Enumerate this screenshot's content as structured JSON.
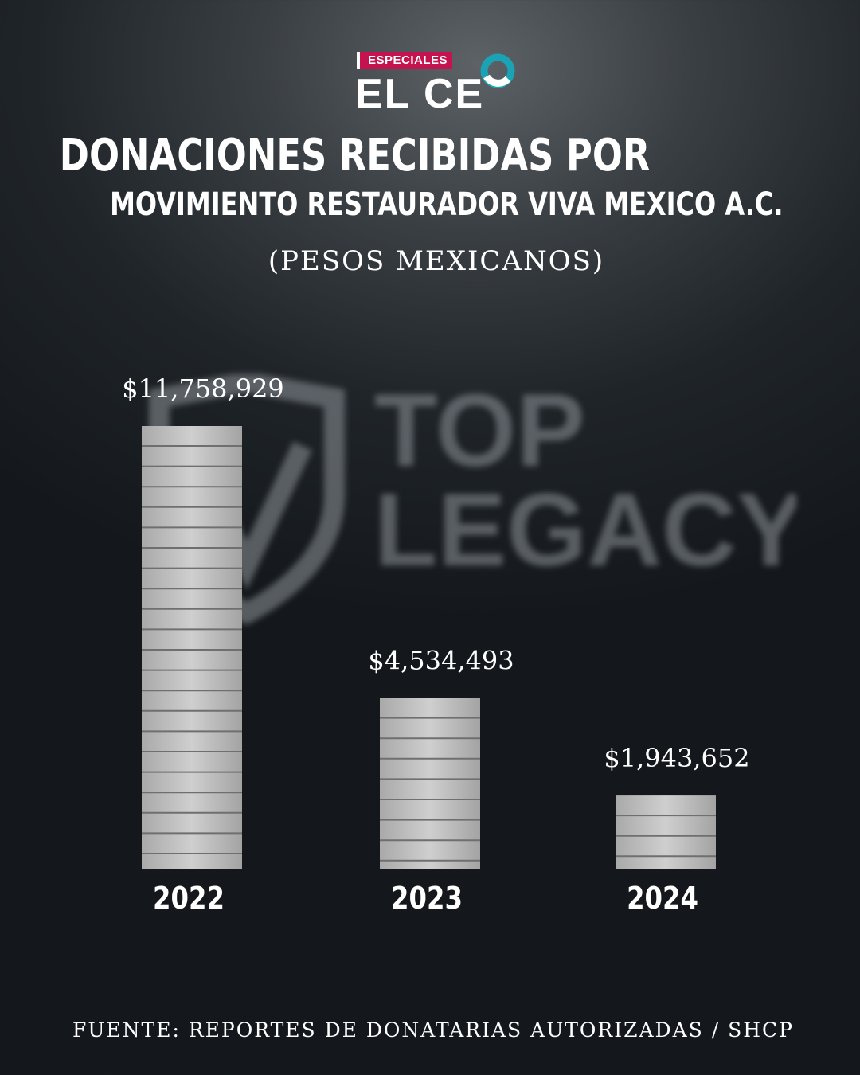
{
  "header": {
    "badge": "ESPECIALES",
    "brand": "EL CE",
    "brand_ring_color": "#1aa3b5",
    "badge_color": "#c4134e"
  },
  "title": {
    "line1": "DONACIONES RECIBIDAS POR",
    "line2": "MOVIMIENTO RESTAURADOR VIVA MEXICO A.C.",
    "subtitle": "(PESOS MEXICANOS)"
  },
  "watermark": {
    "line1": "TOP",
    "line2": "LEGACY"
  },
  "chart_data": {
    "type": "bar",
    "categories": [
      "2022",
      "2023",
      "2024"
    ],
    "values": [
      11758929,
      4534493,
      1943652
    ],
    "data_labels": [
      "$11,758,929",
      "$4,534,493",
      "$1,943,652"
    ],
    "title": "DONACIONES RECIBIDAS POR MOVIMIENTO RESTAURADOR VIVA MEXICO A.C.",
    "xlabel": "",
    "ylabel": "",
    "grid": false,
    "bar_color": "#b9b9b9"
  },
  "footer": {
    "source": "FUENTE: REPORTES DE DONATARIAS AUTORIZADAS / SHCP"
  }
}
